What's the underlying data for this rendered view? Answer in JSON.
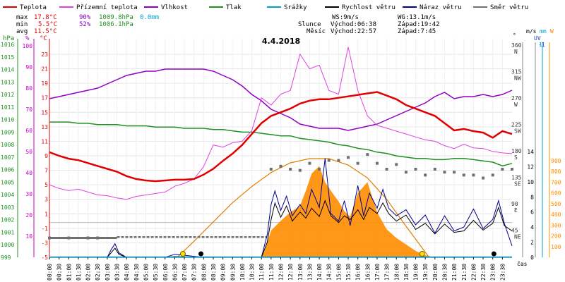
{
  "chart_data": {
    "type": "line",
    "title": "4.4.2018",
    "legend": {
      "placement": "top",
      "items": [
        {
          "label": "Teplota",
          "color": "#e00000"
        },
        {
          "label": "Přízemní teplota",
          "color": "#e040e0"
        },
        {
          "label": "Vlhkost",
          "color": "#9000c0"
        },
        {
          "label": "Tlak",
          "color": "#209020"
        },
        {
          "label": "Srážky",
          "color": "#00a0d0"
        },
        {
          "label": "Rychlost větru",
          "color": "#000000"
        },
        {
          "label": "Náraz větru",
          "color": "#000090"
        },
        {
          "label": "Směr větru",
          "color": "#707070"
        }
      ]
    },
    "stats": {
      "max": {
        "label": "max",
        "temp": "17.8°C",
        "hum": "90%",
        "press": "1009.8hPa",
        "rain": "0.0mm"
      },
      "min": {
        "label": "min",
        "temp": "5.5°C",
        "hum": "52%",
        "press": "1006.1hPa"
      },
      "avg": {
        "label": "avg",
        "temp": "11.5°C"
      }
    },
    "info": {
      "ws": "WS:9m/s",
      "wg": "WG:13.1m/s",
      "sun_label": "Slunce",
      "sun_rise": "Východ:06:38",
      "sun_set": "Západ:19:42",
      "moon_label": "Měsíc",
      "moon_rise": "Východ:22:57",
      "moon_set": "Západ:7:45"
    },
    "colors": {
      "temp": "#e00000",
      "dew": "#e040e0",
      "humidity": "#9000c0",
      "pressure": "#209020",
      "rain": "#00a0d0",
      "wind": "#000000",
      "gust": "#000090",
      "dir": "#707070",
      "solar": "#ff8c00",
      "sun_curve": "#e08000",
      "hpa_axis": "#209020",
      "pct_axis": "#c000c0",
      "temp_axis": "#e00000",
      "uv_axis": "#2040c0",
      "rain_axis": "#00a0d0",
      "solar_axis": "#ff8c00"
    },
    "axes": {
      "hpa": {
        "label": "hPa",
        "ticks": [
          999,
          1000,
          1001,
          1002,
          1003,
          1004,
          1005,
          1006,
          1007,
          1008,
          1009,
          1010,
          1011,
          1012,
          1013,
          1014,
          1015,
          1016
        ]
      },
      "pct": {
        "label": "%",
        "ticks": [
          10,
          20,
          30,
          40,
          50,
          60,
          70,
          80,
          90,
          100
        ]
      },
      "temp": {
        "label": "°C",
        "ticks": [
          -5,
          -3,
          -1,
          1,
          3,
          5,
          7,
          9,
          11,
          13,
          15,
          17,
          19,
          21,
          23
        ]
      },
      "dir": {
        "label": "°",
        "ticks": [
          {
            "deg": "45",
            "name": "NE"
          },
          {
            "deg": "90",
            "name": "E"
          },
          {
            "deg": "135",
            "name": "SE"
          },
          {
            "deg": "180",
            "name": "S"
          },
          {
            "deg": "225",
            "name": "SW"
          },
          {
            "deg": "270",
            "name": "W"
          },
          {
            "deg": "315",
            "name": "NW"
          },
          {
            "deg": "360",
            "name": "N"
          }
        ]
      },
      "ms": {
        "label": "m/s",
        "ticks": [
          0,
          2,
          4,
          6,
          8,
          10,
          12,
          14
        ]
      },
      "uv": {
        "label": "UV",
        "ticks": [
          "-1"
        ]
      },
      "rain": {
        "label": "mm",
        "ticks": [
          "1"
        ]
      },
      "solar": {
        "label": "W",
        "ticks": [
          100,
          200,
          300,
          400,
          500,
          600,
          700,
          800,
          900
        ]
      },
      "time_label": "čas",
      "time_ticks": [
        "00:00",
        "00:30",
        "01:00",
        "01:30",
        "02:00",
        "02:30",
        "03:00",
        "03:30",
        "04:00",
        "04:30",
        "05:00",
        "05:30",
        "06:00",
        "06:30",
        "07:00",
        "07:30",
        "08:00",
        "08:30",
        "09:00",
        "09:30",
        "10:00",
        "10:30",
        "11:00",
        "11:30",
        "12:00",
        "12:30",
        "13:00",
        "13:30",
        "14:00",
        "14:30",
        "15:00",
        "15:30",
        "16:00",
        "16:30",
        "17:00",
        "17:30",
        "18:00",
        "18:30",
        "19:00",
        "19:30",
        "20:00",
        "20:30",
        "21:00",
        "21:30",
        "22:00",
        "22:30",
        "23:00",
        "23:30"
      ],
      "x_range_hours": [
        0,
        24
      ]
    },
    "series": {
      "temperature": {
        "name": "Teplota",
        "x": [
          0,
          0.5,
          1,
          1.5,
          2,
          2.5,
          3,
          3.5,
          4,
          4.5,
          5,
          5.5,
          6,
          6.5,
          7,
          7.5,
          8,
          8.5,
          9,
          9.5,
          10,
          10.5,
          11,
          11.5,
          12,
          12.5,
          13,
          13.5,
          14,
          14.5,
          15,
          15.5,
          16,
          16.5,
          17,
          17.5,
          18,
          18.5,
          19,
          19.5,
          20,
          20.5,
          21,
          21.5,
          22,
          22.5,
          23,
          23.5,
          24
        ],
        "y": [
          9.5,
          9.0,
          8.6,
          8.4,
          8.0,
          7.6,
          7.2,
          6.8,
          6.2,
          5.8,
          5.6,
          5.5,
          5.6,
          5.7,
          5.7,
          5.8,
          6.4,
          7.2,
          8.3,
          9.3,
          10.5,
          12.0,
          13.5,
          14.5,
          15.0,
          15.5,
          16.2,
          16.6,
          16.8,
          16.8,
          17.0,
          17.2,
          17.4,
          17.6,
          17.8,
          17.3,
          16.8,
          16.0,
          15.5,
          15.0,
          14.5,
          13.5,
          12.5,
          12.7,
          12.4,
          12.2,
          11.5,
          12.4,
          12.0
        ]
      },
      "dewpoint": {
        "name": "Přízemní teplota",
        "x": [
          0,
          0.5,
          1,
          1.5,
          2,
          2.5,
          3,
          3.5,
          4,
          4.5,
          5,
          5.5,
          6,
          6.5,
          7,
          7.5,
          8,
          8.5,
          9,
          9.5,
          10,
          10.5,
          11,
          11.5,
          12,
          12.5,
          13,
          13.5,
          14,
          14.5,
          15,
          15.5,
          16,
          16.5,
          17,
          17.5,
          18,
          18.5,
          19,
          19.5,
          20,
          20.5,
          21,
          21.5,
          22,
          22.5,
          23,
          23.5,
          24
        ],
        "y": [
          5.0,
          4.5,
          4.2,
          4.4,
          4.0,
          3.6,
          3.5,
          3.2,
          3.0,
          3.4,
          3.6,
          3.8,
          4.0,
          4.8,
          5.2,
          5.8,
          7.5,
          10.5,
          10.2,
          10.8,
          11.0,
          12.5,
          17.0,
          16.0,
          17.5,
          18.0,
          23.0,
          21.0,
          21.5,
          18.0,
          17.5,
          24.0,
          18.0,
          14.5,
          13.2,
          12.8,
          12.4,
          12.0,
          11.6,
          11.2,
          11.0,
          10.4,
          10.0,
          10.6,
          10.1,
          10.0,
          9.6,
          9.4,
          9.3
        ]
      },
      "humidity": {
        "name": "Vlhkost",
        "x": [
          0,
          0.5,
          1,
          1.5,
          2,
          2.5,
          3,
          3.5,
          4,
          4.5,
          5,
          5.5,
          6,
          6.5,
          7,
          7.5,
          8,
          8.5,
          9,
          9.5,
          10,
          10.5,
          11,
          11.5,
          12,
          12.5,
          13,
          13.5,
          14,
          14.5,
          15,
          15.5,
          16,
          16.5,
          17,
          17.5,
          18,
          18.5,
          19,
          19.5,
          20,
          20.5,
          21,
          21.5,
          22,
          22.5,
          23,
          23.5,
          24
        ],
        "y": [
          75,
          76,
          77,
          78,
          79,
          80,
          82,
          84,
          86,
          87,
          88,
          88,
          89,
          89,
          89,
          89,
          89,
          88,
          86,
          84,
          81,
          77,
          74,
          70,
          68,
          66,
          63,
          62,
          61,
          61,
          61,
          60,
          61,
          62,
          63,
          65,
          67,
          69,
          71,
          73,
          76,
          78,
          75,
          76,
          76,
          77,
          76,
          77,
          79
        ]
      },
      "pressure": {
        "name": "Tlak",
        "x": [
          0,
          0.5,
          1,
          1.5,
          2,
          2.5,
          3,
          3.5,
          4,
          4.5,
          5,
          5.5,
          6,
          6.5,
          7,
          7.5,
          8,
          8.5,
          9,
          9.5,
          10,
          10.5,
          11,
          11.5,
          12,
          12.5,
          13,
          13.5,
          14,
          14.5,
          15,
          15.5,
          16,
          16.5,
          17,
          17.5,
          18,
          18.5,
          19,
          19.5,
          20,
          20.5,
          21,
          21.5,
          22,
          22.5,
          23,
          23.5,
          24
        ],
        "y": [
          1009.8,
          1009.8,
          1009.8,
          1009.7,
          1009.7,
          1009.6,
          1009.6,
          1009.6,
          1009.5,
          1009.5,
          1009.5,
          1009.4,
          1009.4,
          1009.4,
          1009.3,
          1009.3,
          1009.3,
          1009.2,
          1009.2,
          1009.1,
          1009.0,
          1009.0,
          1008.9,
          1008.8,
          1008.7,
          1008.7,
          1008.5,
          1008.4,
          1008.3,
          1008.2,
          1008.0,
          1007.9,
          1007.7,
          1007.6,
          1007.4,
          1007.3,
          1007.1,
          1007.0,
          1006.9,
          1006.9,
          1006.8,
          1006.8,
          1006.9,
          1006.9,
          1006.8,
          1006.7,
          1006.6,
          1006.3,
          1006.5
        ]
      },
      "wind": {
        "name": "Rychlost větru",
        "x": [
          0,
          3,
          3.2,
          3.4,
          3.6,
          4,
          6,
          6.5,
          8,
          11,
          11.3,
          11.5,
          11.7,
          12,
          12.3,
          12.6,
          13,
          13.3,
          13.6,
          14,
          14.3,
          14.6,
          15,
          15.3,
          15.6,
          16,
          16.3,
          16.6,
          17,
          17.3,
          17.6,
          18,
          18.5,
          19,
          19.5,
          20,
          20.5,
          21,
          21.5,
          22,
          22.5,
          23,
          23.3,
          23.6,
          24
        ],
        "y": [
          0,
          0,
          0.6,
          1.2,
          0.4,
          0,
          0,
          0.1,
          0,
          0,
          2.0,
          5.0,
          7.2,
          5.3,
          6.8,
          4.8,
          6.0,
          5.2,
          6.5,
          5.4,
          7.5,
          5.5,
          4.6,
          5.5,
          5.0,
          6.3,
          5.0,
          6.6,
          5.8,
          7.2,
          5.8,
          4.8,
          5.6,
          3.7,
          4.5,
          3.1,
          4.4,
          3.3,
          3.5,
          4.9,
          3.6,
          4.5,
          6.6,
          4.2,
          3.5
        ]
      },
      "gust": {
        "name": "Náraz větru",
        "x": [
          0,
          3,
          3.2,
          3.4,
          3.6,
          4,
          6,
          6.5,
          8,
          11,
          11.3,
          11.5,
          11.7,
          12,
          12.3,
          12.6,
          13,
          13.3,
          13.6,
          14,
          14.3,
          14.6,
          15,
          15.3,
          15.6,
          16,
          16.3,
          16.6,
          17,
          17.3,
          17.6,
          18,
          18.5,
          19,
          19.5,
          20,
          20.5,
          21,
          21.5,
          22,
          22.5,
          23,
          23.3,
          23.6,
          24
        ],
        "y": [
          0,
          0,
          1.0,
          1.8,
          0.6,
          0,
          0,
          0.4,
          0,
          0,
          3.0,
          7.0,
          8.8,
          6.2,
          8.1,
          5.5,
          7.0,
          5.8,
          9.0,
          6.6,
          13.1,
          5.8,
          4.8,
          7.5,
          4.2,
          9.5,
          5.5,
          8.5,
          6.5,
          9.0,
          6.5,
          5.5,
          6.3,
          4.3,
          5.6,
          3.2,
          5.5,
          3.5,
          4.0,
          6.4,
          3.8,
          5.0,
          7.5,
          4.5,
          1.5
        ]
      },
      "direction": {
        "name": "Směr větru",
        "x": [
          0,
          1,
          2,
          2.5,
          3,
          4,
          5,
          6,
          7,
          8,
          9,
          10,
          11,
          11.5,
          12,
          12.5,
          13,
          13.5,
          14,
          14.5,
          15,
          15.5,
          16,
          16.5,
          17,
          17.5,
          18,
          18.5,
          19,
          19.5,
          20,
          20.5,
          21,
          21.5,
          22,
          22.5,
          23,
          23.5,
          24
        ],
        "y": [
          33,
          33,
          33,
          33,
          0,
          0,
          0,
          0,
          0,
          0,
          0,
          0,
          0,
          150,
          155,
          150,
          148,
          160,
          150,
          165,
          165,
          170,
          160,
          175,
          160,
          150,
          158,
          145,
          150,
          140,
          150,
          145,
          145,
          140,
          140,
          135,
          140,
          150,
          150
        ]
      },
      "solar": {
        "name": "",
        "x": [
          0,
          11,
          11.2,
          11.5,
          12,
          12.5,
          13,
          13.3,
          13.6,
          14,
          14.3,
          14.6,
          15,
          15.3,
          15.6,
          16,
          16.5,
          17,
          17.5,
          18,
          18.5,
          19,
          19.5,
          20,
          24
        ],
        "y": [
          0,
          0,
          80,
          250,
          340,
          420,
          480,
          620,
          780,
          850,
          700,
          620,
          520,
          430,
          380,
          600,
          700,
          420,
          260,
          180,
          120,
          60,
          20,
          0,
          0
        ]
      },
      "sun_curve": {
        "name": "",
        "x": [
          6.63,
          7.5,
          8.5,
          9.5,
          10.5,
          11.5,
          12.5,
          13.5,
          14.5,
          15.5,
          16.5,
          17.5,
          18.5,
          19.7
        ],
        "y": [
          0,
          150,
          330,
          510,
          660,
          790,
          880,
          920,
          920,
          860,
          740,
          540,
          290,
          0
        ]
      }
    },
    "markers": {
      "moonset": {
        "x": 7.75
      },
      "sunrise": {
        "x": 6.63
      },
      "sunset": {
        "x": 19.7
      },
      "moonrise": {
        "x": 22.95
      }
    }
  }
}
